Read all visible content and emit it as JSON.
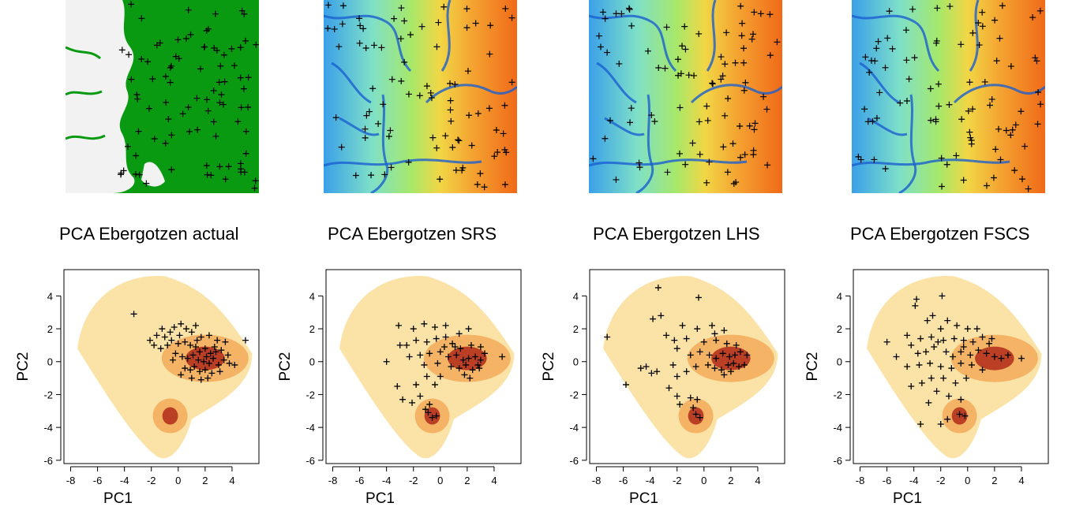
{
  "colors": {
    "land_green": "#0a9a12",
    "land_white": "#f2f2f2",
    "density_light": "#fbe3a8",
    "density_mid": "#f3a44f",
    "density_dark": "#b02a1a",
    "marker": "#000000"
  },
  "maps": [
    {
      "kind": "landcover",
      "markers": "black-plus"
    },
    {
      "kind": "elevation",
      "markers": "black-plus"
    },
    {
      "kind": "elevation",
      "markers": "black-plus"
    },
    {
      "kind": "elevation",
      "markers": "black-plus"
    }
  ],
  "titles": [
    "PCA Ebergotzen actual",
    "PCA Ebergotzen SRS",
    "PCA Ebergotzen LHS",
    "PCA Ebergotzen FSCS"
  ],
  "chart_data": [
    {
      "type": "scatter",
      "title": "PCA Ebergotzen actual",
      "xlabel": "PC1",
      "ylabel": "PC2",
      "xlim": [
        -8.5,
        6
      ],
      "ylim": [
        -6.2,
        5.6
      ],
      "xticks": [
        -8,
        -6,
        -4,
        -2,
        0,
        2,
        4
      ],
      "yticks": [
        -6,
        -4,
        -2,
        0,
        2,
        4
      ],
      "xtick_labels": [
        "-8",
        "-6",
        "-4",
        "-2",
        "0",
        "2",
        "4"
      ],
      "ytick_labels": [
        "-6",
        "-4",
        "-2",
        "0",
        "2",
        "4"
      ],
      "grid": false,
      "background": "hexbin density of PC scores",
      "density_peaks": [
        {
          "x": 2.0,
          "y": 0.2
        },
        {
          "x": -0.6,
          "y": -3.3
        }
      ],
      "markers": "+",
      "points": [
        [
          -3.3,
          2.9
        ],
        [
          -2.1,
          1.3
        ],
        [
          -1.6,
          1.6
        ],
        [
          -1.2,
          2.0
        ],
        [
          -1.0,
          1.5
        ],
        [
          -0.6,
          1.8
        ],
        [
          -0.3,
          2.1
        ],
        [
          0.2,
          2.3
        ],
        [
          0.6,
          2.0
        ],
        [
          1.0,
          1.8
        ],
        [
          1.3,
          2.2
        ],
        [
          1.7,
          1.5
        ],
        [
          2.3,
          1.6
        ],
        [
          2.9,
          1.3
        ],
        [
          3.5,
          1.2
        ],
        [
          5.0,
          1.3
        ],
        [
          -1.8,
          1.0
        ],
        [
          -1.3,
          0.8
        ],
        [
          -0.8,
          1.0
        ],
        [
          -0.5,
          1.3
        ],
        [
          0.0,
          1.1
        ],
        [
          0.5,
          1.2
        ],
        [
          0.9,
          1.0
        ],
        [
          1.3,
          0.9
        ],
        [
          1.6,
          0.6
        ],
        [
          2.0,
          0.8
        ],
        [
          2.4,
          0.5
        ],
        [
          2.8,
          0.6
        ],
        [
          3.2,
          0.7
        ],
        [
          3.7,
          0.4
        ],
        [
          -0.2,
          0.5
        ],
        [
          0.3,
          0.3
        ],
        [
          0.7,
          0.2
        ],
        [
          1.1,
          0.4
        ],
        [
          1.5,
          0.1
        ],
        [
          1.9,
          0.0
        ],
        [
          2.3,
          -0.1
        ],
        [
          2.6,
          0.2
        ],
        [
          3.0,
          -0.2
        ],
        [
          0.5,
          -0.4
        ],
        [
          0.9,
          -0.5
        ],
        [
          1.2,
          -0.3
        ],
        [
          1.6,
          -0.6
        ],
        [
          2.0,
          -0.5
        ],
        [
          2.5,
          -0.7
        ],
        [
          3.1,
          -0.6
        ],
        [
          3.8,
          -0.1
        ],
        [
          4.2,
          -0.2
        ],
        [
          1.0,
          -1.0
        ],
        [
          1.7,
          -1.1
        ],
        [
          2.2,
          -1.0
        ],
        [
          0.2,
          -0.8
        ],
        [
          -0.4,
          0.1
        ],
        [
          2.7,
          0.9
        ],
        [
          1.4,
          1.3
        ],
        [
          0.1,
          1.6
        ],
        [
          3.4,
          0.1
        ],
        [
          2.1,
          0.3
        ]
      ]
    },
    {
      "type": "scatter",
      "title": "PCA Ebergotzen SRS",
      "xlabel": "PC1",
      "ylabel": "PC2",
      "xlim": [
        -8.5,
        6
      ],
      "ylim": [
        -6.2,
        5.6
      ],
      "xticks": [
        -8,
        -6,
        -4,
        -2,
        0,
        2,
        4
      ],
      "yticks": [
        -6,
        -4,
        -2,
        0,
        2,
        4
      ],
      "xtick_labels": [
        "-8",
        "-6",
        "-4",
        "-2",
        "0",
        "2",
        "4"
      ],
      "ytick_labels": [
        "-6",
        "-4",
        "-2",
        "0",
        "2",
        "4"
      ],
      "grid": false,
      "background": "hexbin density of PC scores",
      "density_peaks": [
        {
          "x": 2.0,
          "y": 0.2
        },
        {
          "x": -0.6,
          "y": -3.3
        }
      ],
      "markers": "+",
      "points": [
        [
          -3.1,
          2.2
        ],
        [
          -2.0,
          2.0
        ],
        [
          -1.2,
          2.3
        ],
        [
          -0.4,
          2.1
        ],
        [
          0.4,
          2.2
        ],
        [
          1.4,
          1.7
        ],
        [
          2.1,
          2.0
        ],
        [
          -3.0,
          1.0
        ],
        [
          -2.5,
          1.0
        ],
        [
          -1.8,
          1.3
        ],
        [
          -1.0,
          1.2
        ],
        [
          -0.3,
          1.4
        ],
        [
          0.3,
          0.9
        ],
        [
          0.9,
          1.1
        ],
        [
          1.5,
          0.8
        ],
        [
          2.3,
          1.0
        ],
        [
          3.0,
          0.9
        ],
        [
          -4.0,
          0.0
        ],
        [
          -2.3,
          0.3
        ],
        [
          -1.5,
          0.4
        ],
        [
          -0.8,
          0.5
        ],
        [
          0.0,
          0.6
        ],
        [
          0.6,
          0.3
        ],
        [
          1.2,
          0.4
        ],
        [
          1.7,
          0.1
        ],
        [
          2.1,
          0.2
        ],
        [
          2.6,
          0.3
        ],
        [
          3.0,
          0.1
        ],
        [
          3.3,
          0.5
        ],
        [
          4.6,
          0.3
        ],
        [
          -1.2,
          -0.2
        ],
        [
          -0.2,
          -0.1
        ],
        [
          0.8,
          -0.3
        ],
        [
          1.4,
          -0.4
        ],
        [
          1.9,
          -0.2
        ],
        [
          2.4,
          -0.5
        ],
        [
          2.9,
          -0.4
        ],
        [
          -3.2,
          -1.5
        ],
        [
          -1.8,
          -1.4
        ],
        [
          -1.0,
          -0.9
        ],
        [
          -0.4,
          -1.4
        ],
        [
          0.0,
          -0.9
        ],
        [
          -2.8,
          -2.3
        ],
        [
          -2.1,
          -2.5
        ],
        [
          -1.5,
          -2.1
        ],
        [
          -1.1,
          -2.9
        ],
        [
          -0.9,
          -3.1
        ],
        [
          -0.6,
          -3.4
        ],
        [
          -0.3,
          -3.3
        ],
        [
          -0.8,
          -2.6
        ],
        [
          1.8,
          -0.8
        ],
        [
          2.2,
          -1.0
        ],
        [
          0.4,
          1.5
        ],
        [
          2.8,
          -0.2
        ],
        [
          1.1,
          0.9
        ]
      ]
    },
    {
      "type": "scatter",
      "title": "PCA Ebergotzen LHS",
      "xlabel": "PC1",
      "ylabel": "PC2",
      "xlim": [
        -8.5,
        6
      ],
      "ylim": [
        -6.2,
        5.6
      ],
      "xticks": [
        -8,
        -6,
        -4,
        -2,
        0,
        2,
        4
      ],
      "yticks": [
        -6,
        -4,
        -2,
        0,
        2,
        4
      ],
      "xtick_labels": [
        "-8",
        "-6",
        "-4",
        "-2",
        "0",
        "2",
        "4"
      ],
      "ytick_labels": [
        "-6",
        "-4",
        "-2",
        "0",
        "2",
        "4"
      ],
      "grid": false,
      "background": "hexbin density of PC scores",
      "density_peaks": [
        {
          "x": 2.0,
          "y": 0.2
        },
        {
          "x": -0.6,
          "y": -3.3
        }
      ],
      "markers": "+",
      "points": [
        [
          -3.4,
          4.5
        ],
        [
          -0.4,
          3.9
        ],
        [
          -3.8,
          2.6
        ],
        [
          -3.2,
          2.8
        ],
        [
          -1.6,
          2.2
        ],
        [
          -0.5,
          2.0
        ],
        [
          0.6,
          2.2
        ],
        [
          1.5,
          1.9
        ],
        [
          -7.2,
          1.5
        ],
        [
          -2.8,
          1.6
        ],
        [
          -2.2,
          1.3
        ],
        [
          -1.3,
          1.4
        ],
        [
          0.0,
          1.2
        ],
        [
          0.9,
          1.3
        ],
        [
          1.7,
          1.1
        ],
        [
          2.4,
          1.0
        ],
        [
          -2.0,
          0.8
        ],
        [
          -1.0,
          0.4
        ],
        [
          -0.3,
          0.6
        ],
        [
          0.4,
          0.4
        ],
        [
          0.9,
          0.2
        ],
        [
          1.4,
          0.5
        ],
        [
          1.9,
          0.3
        ],
        [
          2.3,
          0.4
        ],
        [
          2.7,
          0.6
        ],
        [
          3.2,
          0.4
        ],
        [
          -0.6,
          -0.3
        ],
        [
          0.3,
          -0.2
        ],
        [
          0.8,
          -0.4
        ],
        [
          1.3,
          -0.5
        ],
        [
          1.8,
          -0.2
        ],
        [
          2.2,
          -0.1
        ],
        [
          2.6,
          -0.3
        ],
        [
          3.0,
          -0.2
        ],
        [
          -4.3,
          -0.3
        ],
        [
          -3.9,
          -0.7
        ],
        [
          -4.7,
          -0.4
        ],
        [
          -2.3,
          -0.2
        ],
        [
          -2.0,
          -0.9
        ],
        [
          -1.3,
          -0.6
        ],
        [
          -5.8,
          -1.4
        ],
        [
          -3.5,
          -0.6
        ],
        [
          -2.6,
          -1.6
        ],
        [
          -2.0,
          -2.1
        ],
        [
          -1.0,
          -2.2
        ],
        [
          -0.8,
          -2.8
        ],
        [
          -0.6,
          -3.2
        ],
        [
          -0.3,
          -3.4
        ],
        [
          -0.5,
          -2.3
        ],
        [
          -1.8,
          -2.6
        ],
        [
          1.5,
          -0.8
        ],
        [
          2.0,
          -0.6
        ],
        [
          0.8,
          1.7
        ]
      ]
    },
    {
      "type": "scatter",
      "title": "PCA Ebergotzen FSCS",
      "xlabel": "PC1",
      "ylabel": "PC2",
      "xlim": [
        -8.5,
        6
      ],
      "ylim": [
        -6.2,
        5.6
      ],
      "xticks": [
        -8,
        -6,
        -4,
        -2,
        0,
        2,
        4
      ],
      "yticks": [
        -6,
        -4,
        -2,
        0,
        2,
        4
      ],
      "xtick_labels": [
        "-8",
        "-6",
        "-4",
        "-2",
        "0",
        "2",
        "4"
      ],
      "ytick_labels": [
        "-6",
        "-4",
        "-2",
        "0",
        "2",
        "4"
      ],
      "grid": false,
      "background": "hexbin density of PC scores",
      "density_peaks": [
        {
          "x": 2.0,
          "y": 0.2
        },
        {
          "x": -0.6,
          "y": -3.3
        }
      ],
      "markers": "+",
      "points": [
        [
          -3.8,
          3.8
        ],
        [
          -3.9,
          3.4
        ],
        [
          -1.9,
          4.0
        ],
        [
          -2.6,
          2.8
        ],
        [
          -3.0,
          2.5
        ],
        [
          -1.5,
          2.5
        ],
        [
          -0.8,
          2.2
        ],
        [
          -2.0,
          2.0
        ],
        [
          0.0,
          2.0
        ],
        [
          0.7,
          2.0
        ],
        [
          -6.0,
          1.2
        ],
        [
          -4.5,
          1.6
        ],
        [
          -4.2,
          1.0
        ],
        [
          -3.5,
          1.4
        ],
        [
          -2.7,
          1.5
        ],
        [
          -2.2,
          1.2
        ],
        [
          -1.8,
          1.3
        ],
        [
          -1.0,
          1.4
        ],
        [
          -0.3,
          1.3
        ],
        [
          0.4,
          1.2
        ],
        [
          1.1,
          1.5
        ],
        [
          1.6,
          1.1
        ],
        [
          -5.3,
          0.3
        ],
        [
          -3.7,
          0.5
        ],
        [
          -3.1,
          0.6
        ],
        [
          -2.5,
          0.9
        ],
        [
          -1.6,
          0.6
        ],
        [
          -1.1,
          0.3
        ],
        [
          -0.5,
          0.6
        ],
        [
          0.2,
          0.4
        ],
        [
          0.8,
          0.7
        ],
        [
          1.4,
          0.5
        ],
        [
          2.0,
          0.3
        ],
        [
          2.5,
          0.2
        ],
        [
          3.0,
          0.4
        ],
        [
          4.0,
          0.2
        ],
        [
          -4.5,
          -0.3
        ],
        [
          -3.6,
          -0.2
        ],
        [
          -2.8,
          -0.1
        ],
        [
          -2.0,
          -0.3
        ],
        [
          -1.2,
          -0.4
        ],
        [
          -0.5,
          -0.1
        ],
        [
          0.3,
          -0.2
        ],
        [
          -4.2,
          -1.5
        ],
        [
          -3.4,
          -1.3
        ],
        [
          -2.7,
          -1.0
        ],
        [
          -1.8,
          -1.0
        ],
        [
          -0.9,
          -1.3
        ],
        [
          -0.1,
          -1.0
        ],
        [
          -2.3,
          -1.8
        ],
        [
          -1.4,
          -2.1
        ],
        [
          -0.5,
          -2.3
        ],
        [
          -1.5,
          -3.5
        ],
        [
          -3.5,
          -3.8
        ],
        [
          -2.0,
          -3.8
        ],
        [
          -0.6,
          -3.2
        ],
        [
          -0.2,
          -3.3
        ],
        [
          1.1,
          -0.5
        ],
        [
          -2.9,
          -2.5
        ],
        [
          -0.3,
          0.9
        ],
        [
          1.8,
          1.4
        ]
      ]
    }
  ]
}
